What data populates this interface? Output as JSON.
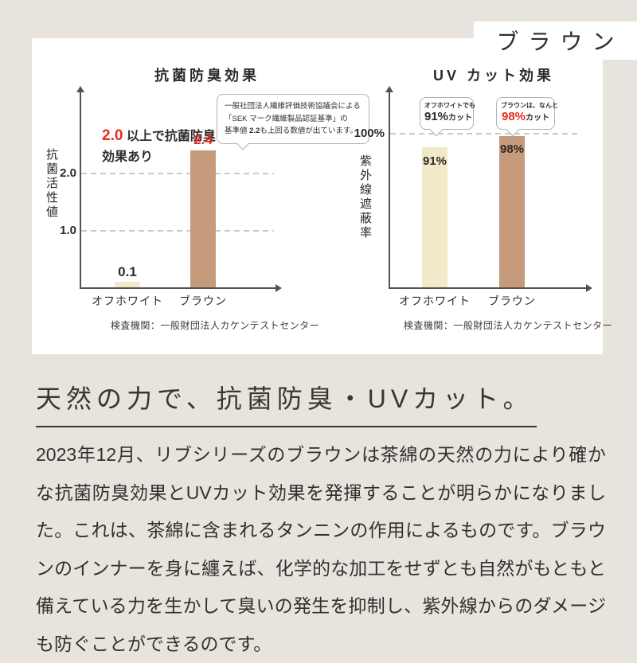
{
  "page": {
    "background": "#e9e3de",
    "corner_label": "ブラウン",
    "heading": "天然の力で、抗菌防臭・UVカット。",
    "body": "2023年12月、リブシリーズのブラウンは茶綿の天然の力により確かな抗菌防臭効果とUVカット効果を発揮することが明らかになりました。これは、茶綿に含まれるタンニンの作用によるものです。ブラウンのインナーを身に纏えば、化学的な加工をせずとも自然がもともと備えている力を生かして臭いの発生を抑制し、紫外線からのダメージも防ぐことができるのです。"
  },
  "colors": {
    "offwhite_bar": "#f2e9c8",
    "brown_bar": "#c69b7c",
    "accent_red": "#e62b1e"
  },
  "chart_data": [
    {
      "type": "bar",
      "title": "抗菌防臭効果",
      "ylabel": "抗菌活性値",
      "categories": [
        "オフホワイト",
        "ブラウン"
      ],
      "values": [
        0.1,
        2.4
      ],
      "bar_labels": [
        "0.1",
        "2.4"
      ],
      "yticks": [
        {
          "label": "2.0",
          "value": 2.0
        },
        {
          "label": "1.0",
          "value": 1.0
        }
      ],
      "ylim": [
        0,
        3.4
      ],
      "grid": "horizontal-dashed",
      "legend": "none",
      "annotation": {
        "red": "2.0",
        "rest": " 以上で抗菌防臭",
        "line2": "効果あり"
      },
      "callout": {
        "line1": "一般社団法人繊維評価技術協議会による",
        "line2": "「SEK マーク繊維製品認証基準」の",
        "line3_pre": "基準値 ",
        "line3_bold": "2.2",
        "line3_post": "も上回る数値が出ています。"
      },
      "source": "検査機関：一般財団法人カケンテストセンター"
    },
    {
      "type": "bar",
      "title": "UV カット効果",
      "ylabel": "紫外線遮蔽率",
      "categories": [
        "オフホワイト",
        "ブラウン"
      ],
      "values": [
        91,
        98
      ],
      "bar_labels": [
        "91%",
        "98%"
      ],
      "yticks": [
        {
          "label": "100%",
          "value": 100
        }
      ],
      "ylim": [
        0,
        128
      ],
      "grid": "horizontal-dashed",
      "legend": "none",
      "callouts": [
        {
          "line1": "オフホワイトでも",
          "big": "91%",
          "suffix": "カット"
        },
        {
          "line1": "ブラウンは、なんと",
          "big": "98%",
          "suffix": "カット"
        }
      ],
      "source": "検査機関：一般財団法人カケンテストセンター"
    }
  ]
}
